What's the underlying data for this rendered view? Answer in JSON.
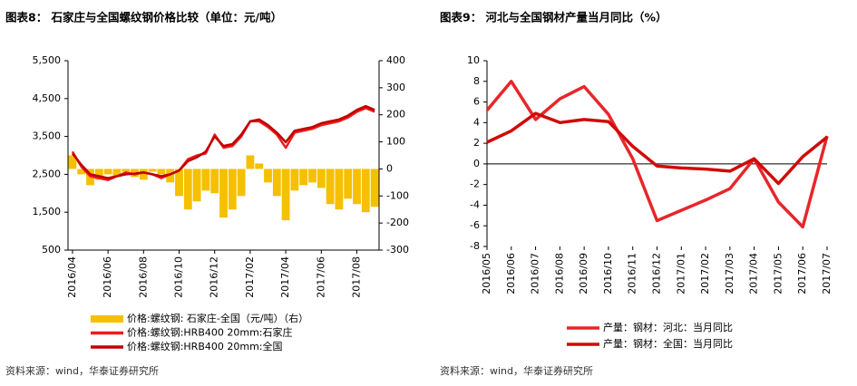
{
  "chart_data": [
    {
      "type": "bar-line",
      "title": "图表8： 石家庄与全国螺纹钢价格比较（单位：元/吨）",
      "source": "资料来源：wind，华泰证券研究所",
      "categories": [
        "2016/04",
        null,
        null,
        null,
        "2016/06",
        null,
        null,
        null,
        "2016/08",
        null,
        null,
        null,
        "2016/10",
        null,
        null,
        null,
        "2016/12",
        null,
        null,
        null,
        "2017/02",
        null,
        null,
        null,
        "2017/04",
        null,
        null,
        null,
        "2017/06",
        null,
        null,
        null,
        "2017/08",
        null,
        null
      ],
      "ylim": [
        500,
        5500
      ],
      "yticks": [
        {
          "value": 500,
          "label": "500"
        },
        {
          "value": 1500,
          "label": "1,500"
        },
        {
          "value": 2500,
          "label": "2,500"
        },
        {
          "value": 3500,
          "label": "3,500"
        },
        {
          "value": 4500,
          "label": "4,500"
        },
        {
          "value": 5500,
          "label": "5,500"
        }
      ],
      "y2lim": [
        -300,
        400
      ],
      "y2ticks": [
        -300,
        -200,
        -100,
        0,
        100,
        200,
        300,
        400
      ],
      "series": [
        {
          "name": "价格:螺纹钢: 石家庄-全国（元/吨）（右）",
          "type": "bar",
          "axis": "y2",
          "color": "#f5c000",
          "values": [
            50,
            -20,
            -60,
            -40,
            -20,
            -30,
            -10,
            -30,
            -40,
            -10,
            -20,
            -50,
            -100,
            -150,
            -120,
            -80,
            -90,
            -180,
            -150,
            -100,
            50,
            20,
            -50,
            -100,
            -190,
            -80,
            -60,
            -50,
            -70,
            -130,
            -150,
            -110,
            -130,
            -160,
            -140
          ]
        },
        {
          "name": "价格:螺纹钢:HRB400 20mm:石家庄",
          "type": "line",
          "color": "#ee1c1c",
          "values": [
            3100,
            2700,
            2450,
            2400,
            2350,
            2450,
            2550,
            2500,
            2550,
            2500,
            2400,
            2500,
            2600,
            2900,
            3000,
            3050,
            3550,
            3200,
            3250,
            3500,
            3900,
            3900,
            3750,
            3550,
            3200,
            3600,
            3650,
            3700,
            3800,
            3850,
            3900,
            4000,
            4150,
            4250,
            4150
          ]
        },
        {
          "name": "价格:螺纹钢:HRB400 20mm:全国",
          "type": "line",
          "color": "#c00000",
          "values": [
            3050,
            2750,
            2500,
            2450,
            2400,
            2450,
            2500,
            2520,
            2550,
            2500,
            2450,
            2500,
            2600,
            2850,
            2950,
            3100,
            3500,
            3250,
            3300,
            3550,
            3900,
            3950,
            3800,
            3600,
            3350,
            3650,
            3700,
            3750,
            3850,
            3900,
            3950,
            4050,
            4200,
            4300,
            4200
          ]
        }
      ]
    },
    {
      "type": "line",
      "title": "图表9： 河北与全国钢材产量当月同比（%）",
      "source": "资料来源：wind，华泰证券研究所",
      "categories": [
        "2016/05",
        "2016/06",
        "2016/07",
        "2016/08",
        "2016/09",
        "2016/10",
        "2016/11",
        "2016/12",
        "2017/01",
        "2017/02",
        "2017/03",
        "2017/04",
        "2017/05",
        "2017/06",
        "2017/07"
      ],
      "ylim": [
        -8,
        10
      ],
      "yticks": [
        -8,
        -6,
        -4,
        -2,
        0,
        2,
        4,
        6,
        8,
        10
      ],
      "series": [
        {
          "name": "产量：钢材：河北：当月同比",
          "color": "#e8262a",
          "values": [
            5.2,
            8.0,
            4.3,
            6.3,
            7.5,
            4.8,
            0.5,
            -5.5,
            -4.5,
            -3.5,
            -2.4,
            0.5,
            -3.7,
            -6.1,
            2.7
          ]
        },
        {
          "name": "产量：钢材：全国：当月同比",
          "color": "#d00a0a",
          "values": [
            2.1,
            3.2,
            4.9,
            4.0,
            4.3,
            4.1,
            1.7,
            -0.2,
            -0.4,
            -0.5,
            -0.7,
            0.5,
            -1.9,
            0.7,
            2.6
          ]
        }
      ]
    }
  ]
}
